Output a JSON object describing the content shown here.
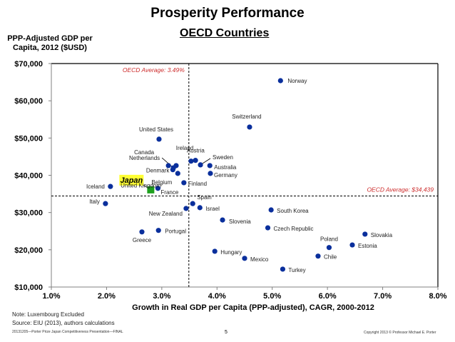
{
  "header": {
    "title": "Prosperity Performance",
    "subtitle": "OECD Countries"
  },
  "footer": {
    "note": "Note: Luxembourg Excluded",
    "source": "Source: EIU (2013), authors calculations",
    "file_label": "20131205—Porter Prize Japan Competitiveness Presentation—FINAL",
    "page_number": "5",
    "copyright": "Copyright 2013 © Professor Michael E. Porter"
  },
  "chart_data": {
    "type": "scatter",
    "title": "Prosperity Performance",
    "subtitle": "OECD Countries",
    "xlabel": "Growth in Real GDP per Capita (PPP-adjusted), CAGR, 2000-2012",
    "ylabel": "PPP-Adjusted GDP per Capita, 2012 ($USD)",
    "xlim": [
      1.0,
      8.0
    ],
    "ylim": [
      10000,
      70000
    ],
    "x_ticks": [
      1.0,
      2.0,
      3.0,
      4.0,
      5.0,
      6.0,
      7.0,
      8.0
    ],
    "x_tick_labels": [
      "1.0%",
      "2.0%",
      "3.0%",
      "4.0%",
      "5.0%",
      "6.0%",
      "7.0%",
      "8.0%"
    ],
    "y_ticks": [
      10000,
      20000,
      30000,
      40000,
      50000,
      60000,
      70000
    ],
    "y_tick_labels": [
      "$10,000",
      "$20,000",
      "$30,000",
      "$40,000",
      "$50,000",
      "$60,000",
      "$70,000"
    ],
    "grid": false,
    "reference_lines": {
      "x_average": {
        "value": 3.49,
        "label": "OECD Average: 3.49%"
      },
      "y_average": {
        "value": 34439,
        "label": "OECD Average: $34,439"
      }
    },
    "colors": {
      "point": "#0a2f9c",
      "highlight": "#1ea01e",
      "highlight_label_bg": "#ffff33",
      "reference_label": "#cc2a2a"
    },
    "points": [
      {
        "name": "Norway",
        "x": 5.15,
        "y": 65400
      },
      {
        "name": "Switzerland",
        "x": 4.59,
        "y": 52950
      },
      {
        "name": "United States",
        "x": 2.95,
        "y": 49700
      },
      {
        "name": "Canada",
        "x": 3.21,
        "y": 42000
      },
      {
        "name": "Ireland",
        "x": 3.26,
        "y": 42600
      },
      {
        "name": "Netherlands",
        "x": 3.12,
        "y": 42600
      },
      {
        "name": "Austria",
        "x": 3.53,
        "y": 43800
      },
      {
        "name": "Sweden",
        "x": 3.7,
        "y": 42800
      },
      {
        "name": "Australia",
        "x": 3.87,
        "y": 42600
      },
      {
        "name": "Germany",
        "x": 3.88,
        "y": 40500
      },
      {
        "name": "Denmark",
        "x": 3.2,
        "y": 41500
      },
      {
        "name": "Belgium",
        "x": 3.29,
        "y": 40500
      },
      {
        "name": "Finland",
        "x": 3.4,
        "y": 38000
      },
      {
        "name": "France",
        "x": 2.93,
        "y": 36500
      },
      {
        "name": "Japan",
        "x": 2.8,
        "y": 36100,
        "highlight": true
      },
      {
        "name": "Iceland",
        "x": 2.07,
        "y": 37000
      },
      {
        "name": "United Kingdom",
        "x": 3.61,
        "y": 44000
      },
      {
        "name": "Italy",
        "x": 1.98,
        "y": 32400
      },
      {
        "name": "Spain",
        "x": 3.56,
        "y": 32400
      },
      {
        "name": "New Zealand",
        "x": 3.44,
        "y": 31100
      },
      {
        "name": "Israel",
        "x": 3.69,
        "y": 31300
      },
      {
        "name": "Slovenia",
        "x": 4.1,
        "y": 28000
      },
      {
        "name": "South Korea",
        "x": 4.98,
        "y": 30700
      },
      {
        "name": "Czech Republic",
        "x": 4.92,
        "y": 25900
      },
      {
        "name": "Portugal",
        "x": 2.94,
        "y": 25200
      },
      {
        "name": "Greece",
        "x": 2.64,
        "y": 24800
      },
      {
        "name": "Slovakia",
        "x": 6.68,
        "y": 24200
      },
      {
        "name": "Estonia",
        "x": 6.45,
        "y": 21300
      },
      {
        "name": "Poland",
        "x": 6.03,
        "y": 20600
      },
      {
        "name": "Chile",
        "x": 5.83,
        "y": 18300
      },
      {
        "name": "Hungary",
        "x": 3.96,
        "y": 19600
      },
      {
        "name": "Mexico",
        "x": 4.5,
        "y": 17700
      },
      {
        "name": "Turkey",
        "x": 5.19,
        "y": 14800
      }
    ]
  }
}
